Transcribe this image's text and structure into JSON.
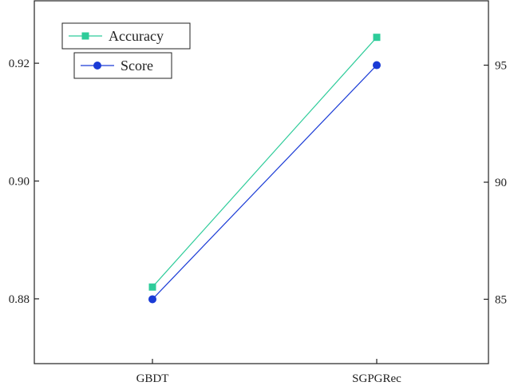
{
  "chart_data": {
    "type": "line",
    "categories": [
      "GBDT",
      "SGPGRec"
    ],
    "series": [
      {
        "name": "Accuracy",
        "axis": "left",
        "values": [
          0.882,
          0.9244
        ],
        "color": "#2ecc9a",
        "marker": "square"
      },
      {
        "name": "Score",
        "axis": "right",
        "values": [
          85,
          95
        ],
        "color": "#1a3bd6",
        "marker": "circle"
      }
    ],
    "y_left": {
      "ticks": [
        "0.88",
        "0.90",
        "0.92"
      ],
      "tick_values": [
        0.88,
        0.9,
        0.92
      ],
      "ylim": [
        0.869,
        0.9306
      ]
    },
    "y_right": {
      "ticks": [
        "85",
        "90",
        "95"
      ],
      "tick_values": [
        85,
        90,
        95
      ],
      "ylim": [
        82.25,
        97.75
      ]
    },
    "grid": false,
    "legend": "top-left",
    "title": "",
    "xlabel": "",
    "ylabel": ""
  }
}
